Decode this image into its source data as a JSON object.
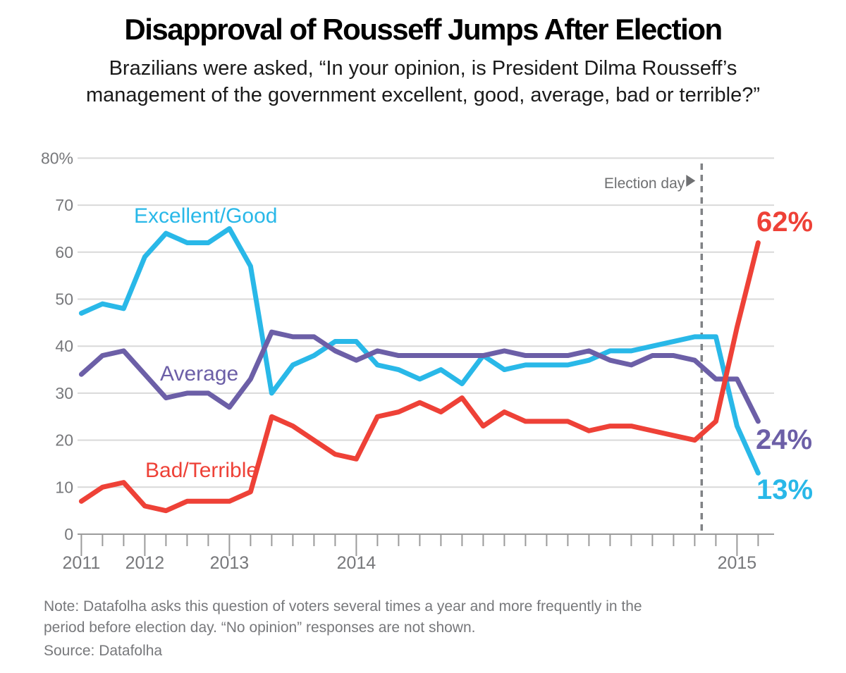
{
  "page": {
    "title": "Disapproval of Rousseff Jumps After Election",
    "subtitle_line1": "Brazilians were asked, “In your opinion, is President Dilma Rousseff’s",
    "subtitle_line2": "management of the government excellent, good, average, bad or terrible?”",
    "note_line1": "Note: Datafolha asks this question of voters several times a year and more frequently in the",
    "note_line2": "period before election day. “No opinion” responses are not shown.",
    "source": "Source: Datafolha"
  },
  "colors": {
    "excellent_good": "#29b8e8",
    "average": "#6c5fa7",
    "bad_terrible": "#ee4137",
    "grid": "#d9d9d9",
    "axis": "#9b9b9b",
    "dashed_line": "#808285",
    "axis_text": "#77787b",
    "election_text": "#6f7072"
  },
  "chart_data": {
    "type": "line",
    "title": "Disapproval of Rousseff Jumps After Election",
    "xlabel": "",
    "ylabel": "",
    "ylim": [
      0,
      80
    ],
    "grid": "horizontal",
    "legend_position": "inline labels on lines",
    "x_note": "33 surveys plotted at equal spacing; tick = one poll, long ticks mark year starts",
    "n_points": 33,
    "y_tick_labels": [
      "0",
      "10",
      "20",
      "30",
      "40",
      "50",
      "60",
      "70",
      "80%"
    ],
    "years": [
      {
        "label": "2011",
        "index": 0
      },
      {
        "label": "2012",
        "index": 3
      },
      {
        "label": "2013",
        "index": 7
      },
      {
        "label": "2014",
        "index": 13
      },
      {
        "label": "2015",
        "index": 31
      }
    ],
    "series": [
      {
        "name": "Excellent/Good",
        "key": "excellent_good",
        "color": "#29b8e8",
        "end_label": "13%",
        "values": [
          47,
          49,
          48,
          59,
          64,
          62,
          62,
          65,
          57,
          30,
          36,
          38,
          41,
          41,
          36,
          35,
          33,
          35,
          32,
          38,
          35,
          36,
          36,
          36,
          37,
          39,
          39,
          40,
          41,
          42,
          42,
          23,
          13
        ]
      },
      {
        "name": "Average",
        "key": "average",
        "color": "#6c5fa7",
        "end_label": "24%",
        "values": [
          34,
          38,
          39,
          34,
          29,
          30,
          30,
          27,
          33,
          43,
          42,
          42,
          39,
          37,
          39,
          38,
          38,
          38,
          38,
          38,
          39,
          38,
          38,
          38,
          39,
          37,
          36,
          38,
          38,
          37,
          33,
          33,
          24
        ]
      },
      {
        "name": "Bad/Terrible",
        "key": "bad_terrible",
        "color": "#ee4137",
        "end_label": "62%",
        "values": [
          7,
          10,
          11,
          6,
          5,
          7,
          7,
          7,
          9,
          25,
          23,
          20,
          17,
          16,
          25,
          26,
          28,
          26,
          29,
          23,
          26,
          24,
          24,
          24,
          22,
          23,
          23,
          22,
          21,
          20,
          24,
          44,
          62
        ]
      }
    ],
    "annotations": {
      "election_day": {
        "label": "Election day",
        "marker": "▶",
        "x_index": 29.33
      }
    }
  }
}
